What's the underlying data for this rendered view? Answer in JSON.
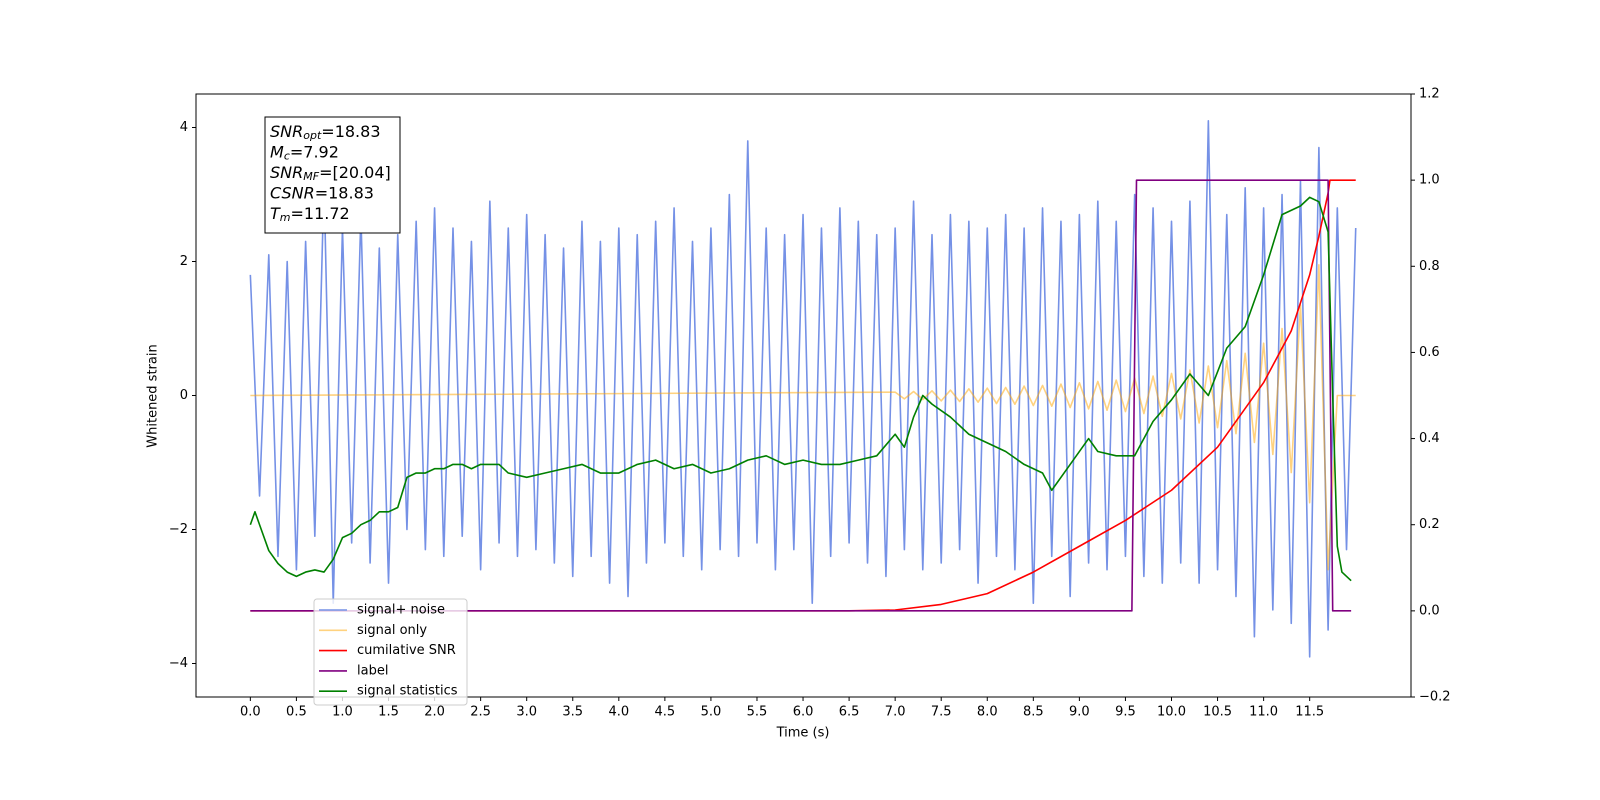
{
  "chart_data": {
    "type": "line",
    "xlabel": "Time (s)",
    "ylabel": "Whitened strain",
    "xlim": [
      -0.59,
      12.6
    ],
    "ylim": [
      -4.5,
      4.5
    ],
    "y2lim": [
      -0.2,
      1.2
    ],
    "xticks": [
      {
        "value": 0,
        "label": "0.0"
      },
      0.5,
      {
        "value": 1,
        "label": "1.0"
      },
      1.5,
      {
        "value": 2,
        "label": "2.0"
      },
      2.5,
      {
        "value": 3,
        "label": "3.0"
      },
      3.5,
      {
        "value": 4,
        "label": "4.0"
      },
      4.5,
      {
        "value": 5,
        "label": "5.0"
      },
      5.5,
      {
        "value": 6,
        "label": "6.0"
      },
      6.5,
      {
        "value": 7,
        "label": "7.0"
      },
      7.5,
      {
        "value": 8,
        "label": "8.0"
      },
      8.5,
      {
        "value": 9,
        "label": "9.0"
      },
      9.5,
      {
        "value": 10,
        "label": "10.0"
      },
      10.5,
      {
        "value": 11,
        "label": "11.0"
      },
      11.5
    ],
    "yticks": [
      {
        "value": -4,
        "label": "−4"
      },
      {
        "value": -2,
        "label": "−2"
      },
      0,
      2,
      4
    ],
    "y2ticks": [
      {
        "value": -0.2,
        "label": "−0.2"
      },
      {
        "value": 0,
        "label": "0.0"
      },
      0.2,
      0.4,
      0.6,
      0.8,
      {
        "value": 1,
        "label": "1.0"
      },
      1.2
    ],
    "legend": "lower left",
    "annotation": [
      {
        "symbol": "SNR",
        "subscript": "opt",
        "text": "=18.83"
      },
      {
        "symbol": "M",
        "subscript": "c",
        "text": "=7.92"
      },
      {
        "symbol": "SNR",
        "subscript": "MF",
        "text": "=[20.04]"
      },
      {
        "symbol": "CSNR",
        "text": "=18.83"
      },
      {
        "symbol": "T",
        "subscript": "m",
        "text": "=11.72"
      }
    ],
    "series": [
      {
        "name": "signal+ noise",
        "color": "#7591e6",
        "x": [
          0,
          0.1,
          0.2,
          0.3,
          0.4,
          0.5,
          0.6,
          0.7,
          0.8,
          0.9,
          1,
          1.1,
          1.2,
          1.3,
          1.4,
          1.5,
          1.6,
          1.7,
          1.8,
          1.9,
          2,
          2.1,
          2.2,
          2.3,
          2.4,
          2.5,
          2.6,
          2.7,
          2.8,
          2.9,
          3,
          3.1,
          3.2,
          3.3,
          3.4,
          3.5,
          3.6,
          3.7,
          3.8,
          3.9,
          4,
          4.1,
          4.2,
          4.3,
          4.4,
          4.5,
          4.6,
          4.7,
          4.8,
          4.9,
          5,
          5.1,
          5.2,
          5.3,
          5.4,
          5.5,
          5.6,
          5.7,
          5.8,
          5.9,
          6,
          6.1,
          6.2,
          6.3,
          6.4,
          6.5,
          6.6,
          6.7,
          6.8,
          6.9,
          7,
          7.1,
          7.2,
          7.3,
          7.4,
          7.5,
          7.6,
          7.7,
          7.8,
          7.9,
          8,
          8.1,
          8.2,
          8.3,
          8.4,
          8.5,
          8.6,
          8.7,
          8.8,
          8.9,
          9,
          9.1,
          9.2,
          9.3,
          9.4,
          9.5,
          9.6,
          9.7,
          9.8,
          9.9,
          10,
          10.1,
          10.2,
          10.3,
          10.4,
          10.5,
          10.6,
          10.7,
          10.8,
          10.9,
          11,
          11.1,
          11.2,
          11.3,
          11.4,
          11.5,
          11.6,
          11.7,
          11.8,
          11.9,
          12
        ],
        "values": [
          1.8,
          -1.5,
          2.1,
          -2.4,
          2.0,
          -2.6,
          2.3,
          -2.1,
          3.2,
          -3.1,
          2.5,
          -2.2,
          2.7,
          -2.5,
          2.2,
          -2.8,
          2.4,
          -2.0,
          2.6,
          -2.3,
          2.8,
          -2.4,
          2.5,
          -2.1,
          2.3,
          -2.6,
          2.9,
          -2.2,
          2.5,
          -2.4,
          2.7,
          -2.3,
          2.4,
          -2.5,
          2.2,
          -2.7,
          2.6,
          -2.4,
          2.3,
          -2.8,
          2.5,
          -3.0,
          2.4,
          -2.5,
          2.6,
          -2.2,
          2.8,
          -2.4,
          2.3,
          -2.6,
          2.5,
          -2.3,
          3.0,
          -2.4,
          3.8,
          -2.2,
          2.5,
          -2.6,
          2.4,
          -2.3,
          2.7,
          -3.1,
          2.5,
          -2.4,
          2.8,
          -2.2,
          2.6,
          -2.5,
          2.4,
          -2.7,
          2.5,
          -2.3,
          2.9,
          -2.6,
          2.4,
          -2.5,
          2.7,
          -2.3,
          2.6,
          -2.8,
          2.5,
          -2.4,
          2.7,
          -2.6,
          2.5,
          -3.1,
          2.8,
          -2.4,
          2.6,
          -3.0,
          2.7,
          -2.5,
          2.9,
          -2.6,
          2.6,
          -2.4,
          3.0,
          -2.7,
          2.8,
          -2.8,
          2.6,
          -2.5,
          2.9,
          -2.8,
          4.1,
          -2.6,
          2.7,
          -3.0,
          3.1,
          -3.6,
          2.8,
          -3.2,
          3.0,
          -3.4,
          3.2,
          -3.9,
          3.7,
          -3.5,
          2.8,
          -2.3,
          2.5
        ]
      },
      {
        "name": "signal only",
        "color": "#ffa500",
        "alpha": 0.5,
        "x": [
          0,
          7,
          7.1,
          7.2,
          7.3,
          7.4,
          7.5,
          7.6,
          7.7,
          7.8,
          7.9,
          8,
          8.1,
          8.2,
          8.3,
          8.4,
          8.5,
          8.6,
          8.7,
          8.8,
          8.9,
          9,
          9.1,
          9.2,
          9.3,
          9.4,
          9.5,
          9.6,
          9.7,
          9.8,
          9.9,
          10,
          10.1,
          10.2,
          10.3,
          10.4,
          10.5,
          10.6,
          10.7,
          10.8,
          10.9,
          11,
          11.1,
          11.2,
          11.3,
          11.4,
          11.5,
          11.6,
          11.7,
          11.8,
          12
        ],
        "values": [
          0,
          0.05,
          -0.05,
          0.06,
          -0.06,
          0.07,
          -0.08,
          0.08,
          -0.09,
          0.1,
          -0.1,
          0.11,
          -0.12,
          0.12,
          -0.13,
          0.14,
          -0.15,
          0.15,
          -0.16,
          0.17,
          -0.18,
          0.19,
          -0.2,
          0.21,
          -0.22,
          0.23,
          -0.24,
          0.26,
          -0.27,
          0.29,
          -0.31,
          0.33,
          -0.35,
          0.38,
          -0.41,
          0.44,
          -0.48,
          0.52,
          -0.57,
          0.63,
          -0.7,
          0.78,
          -0.88,
          1.0,
          -1.15,
          1.35,
          -1.6,
          1.95,
          -2.6,
          0,
          0
        ]
      },
      {
        "name": "cumilative SNR",
        "color": "#ff0000",
        "axis": "y2",
        "x": [
          0,
          6.5,
          7,
          7.5,
          8,
          8.5,
          9,
          9.5,
          10,
          10.5,
          11,
          11.3,
          11.5,
          11.6,
          11.7,
          11.72,
          12
        ],
        "values": [
          0,
          0,
          0.002,
          0.015,
          0.04,
          0.09,
          0.15,
          0.21,
          0.28,
          0.38,
          0.53,
          0.65,
          0.78,
          0.87,
          0.97,
          1.0,
          1.0
        ]
      },
      {
        "name": "label",
        "color": "#800080",
        "axis": "y2",
        "x": [
          0,
          9.57,
          9.62,
          11.7,
          11.75,
          11.95
        ],
        "values": [
          0,
          0,
          1,
          1,
          0,
          0
        ]
      },
      {
        "name": "signal statistics",
        "color": "#008000",
        "axis": "y2",
        "x": [
          0,
          0.05,
          0.1,
          0.2,
          0.3,
          0.4,
          0.5,
          0.6,
          0.7,
          0.8,
          0.9,
          1,
          1.1,
          1.2,
          1.3,
          1.4,
          1.5,
          1.6,
          1.7,
          1.8,
          1.9,
          2,
          2.1,
          2.2,
          2.3,
          2.4,
          2.5,
          2.7,
          2.8,
          3,
          3.2,
          3.4,
          3.6,
          3.8,
          4,
          4.2,
          4.4,
          4.6,
          4.8,
          5,
          5.2,
          5.4,
          5.6,
          5.8,
          6,
          6.2,
          6.4,
          6.6,
          6.8,
          7,
          7.1,
          7.2,
          7.3,
          7.4,
          7.6,
          7.8,
          8,
          8.2,
          8.4,
          8.6,
          8.7,
          8.9,
          9.1,
          9.2,
          9.4,
          9.6,
          9.8,
          10,
          10.2,
          10.4,
          10.6,
          10.8,
          11,
          11.2,
          11.4,
          11.5,
          11.6,
          11.7,
          11.75,
          11.8,
          11.85,
          11.95
        ],
        "values": [
          0.2,
          0.23,
          0.2,
          0.14,
          0.11,
          0.09,
          0.08,
          0.09,
          0.095,
          0.09,
          0.12,
          0.17,
          0.18,
          0.2,
          0.21,
          0.23,
          0.23,
          0.24,
          0.31,
          0.32,
          0.32,
          0.33,
          0.33,
          0.34,
          0.34,
          0.33,
          0.34,
          0.34,
          0.32,
          0.31,
          0.32,
          0.33,
          0.34,
          0.32,
          0.32,
          0.34,
          0.35,
          0.33,
          0.34,
          0.32,
          0.33,
          0.35,
          0.36,
          0.34,
          0.35,
          0.34,
          0.34,
          0.35,
          0.36,
          0.41,
          0.38,
          0.45,
          0.5,
          0.48,
          0.45,
          0.41,
          0.39,
          0.37,
          0.34,
          0.32,
          0.28,
          0.34,
          0.4,
          0.37,
          0.36,
          0.36,
          0.44,
          0.49,
          0.55,
          0.5,
          0.61,
          0.66,
          0.78,
          0.92,
          0.94,
          0.96,
          0.95,
          0.88,
          0.5,
          0.15,
          0.09,
          0.07
        ]
      }
    ]
  }
}
